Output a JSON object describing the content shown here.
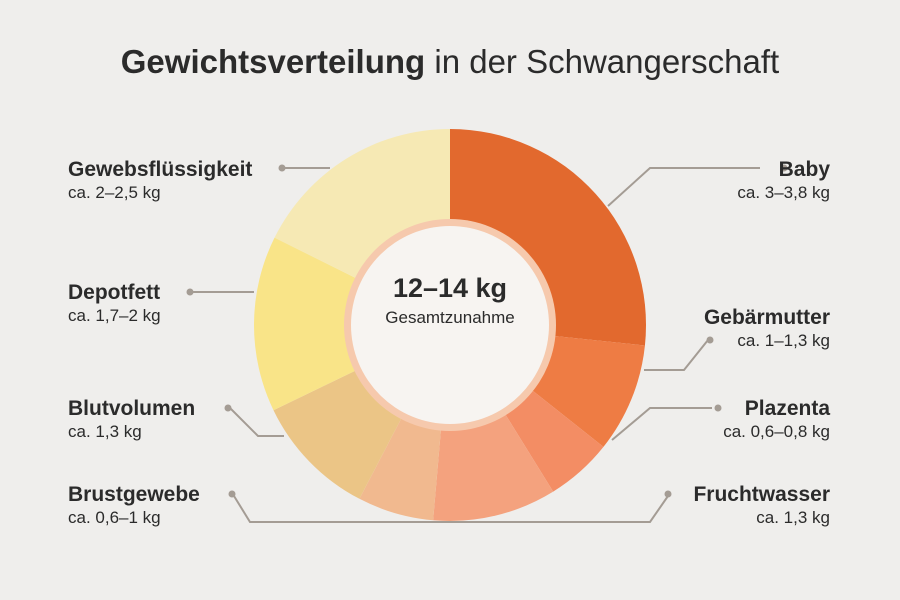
{
  "title": {
    "bold": "Gewichtsverteilung",
    "regular": "in der Schwangerschaft"
  },
  "center": {
    "value": "12–14 kg",
    "caption": "Gesamtzunahme"
  },
  "chart_data": {
    "type": "pie",
    "title": "Gewichtsverteilung in der Schwangerschaft",
    "total_label": "12–14 kg Gesamtzunahme",
    "slices": [
      {
        "name": "Baby",
        "label": "ca. 3–3,8 kg",
        "value": 3.4,
        "color": "#e2692e"
      },
      {
        "name": "Gebärmutter",
        "label": "ca. 1–1,3 kg",
        "value": 1.15,
        "color": "#ee7c44"
      },
      {
        "name": "Plazenta",
        "label": "ca. 0,6–0,8 kg",
        "value": 0.7,
        "color": "#f38d64"
      },
      {
        "name": "Fruchtwasser",
        "label": "ca. 1,3 kg",
        "value": 1.3,
        "color": "#f4a27e"
      },
      {
        "name": "Brustgewebe",
        "label": "ca. 0,6–1 kg",
        "value": 0.8,
        "color": "#f1b98f"
      },
      {
        "name": "Blutvolumen",
        "label": "ca. 1,3 kg",
        "value": 1.3,
        "color": "#ebc586"
      },
      {
        "name": "Depotfett",
        "label": "ca. 1,7–2 kg",
        "value": 1.85,
        "color": "#f9e488"
      },
      {
        "name": "Gewebsflüssigkeit",
        "label": "ca. 2–2,5 kg",
        "value": 2.25,
        "color": "#f6e9b4"
      }
    ]
  }
}
